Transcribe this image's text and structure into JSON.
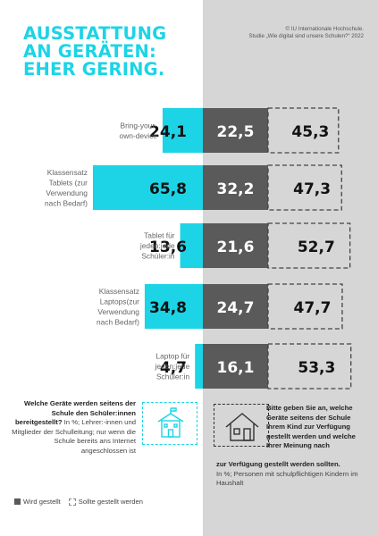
{
  "title": "AUSSTATTUNG\nAN GERÄTEN:\nEHER GERING.",
  "source": "© IU Internationale Hochschule.\nStudie „Wie digital sind unsere Schulen?“ 2022",
  "chart_data": {
    "type": "bar",
    "categories": [
      "Bring-your-own-device",
      "Klassensatz Tablets (zur Verwendung nach Bedarf)",
      "Tablet für jeden:jede Schüler:in",
      "Klassensatz Laptops(zur Verwendung nach Bedarf)",
      "Laptop für jeden:jede Schüler:in"
    ],
    "category_lines": [
      [
        "Bring-your-",
        "own-device"
      ],
      [
        "Klassensatz",
        "Tablets (zur",
        "Verwendung",
        "nach Bedarf)"
      ],
      [
        "Tablet für",
        "jeden:jede",
        "Schüler:in"
      ],
      [
        "Klassensatz",
        "Laptops(zur",
        "Verwendung",
        "nach Bedarf)"
      ],
      [
        "Laptop für",
        "jeden:jede",
        "Schüler:in"
      ]
    ],
    "series": [
      {
        "name": "",
        "values": [
          24.1,
          65.8,
          13.6,
          34.8,
          4.7
        ],
        "labels": [
          "24,1",
          "65,8",
          "13,6",
          "34,8",
          "4,7"
        ],
        "color": "#1cd4e6"
      },
      {
        "name": "Wird gestellt",
        "values": [
          22.5,
          32.2,
          21.6,
          24.7,
          16.1
        ],
        "labels": [
          "22,5",
          "32,2",
          "21,6",
          "24,7",
          "16,1"
        ],
        "color": "#5a5a5a"
      },
      {
        "name": "Sollte gestellt werden",
        "values": [
          45.3,
          47.3,
          52.7,
          47.7,
          53.3
        ],
        "labels": [
          "45,3",
          "47,3",
          "52,7",
          "47,7",
          "53,3"
        ],
        "color": "#555555"
      }
    ],
    "unit": "%"
  },
  "footer_left": {
    "bold": "Welche Geräte werden seitens der Schule den Schüler:innen bereitgestellt?",
    "text": " In %; Lehrer:-innen und Mitglieder der Schulleitung; nur wenn die Schule bereits ans Internet angeschlossen ist"
  },
  "footer_right": {
    "bold_top": "Bitte geben Sie an, welche Geräte seitens der Schule Ihrem Kind zur Verfügung gestellt werden und welche Ihrer Meinung nach",
    "bold_bottom": "zur Verfügung gestellt werden sollten.",
    "text": "In %; Personen mit schulpflichtigen Kindern im Haushalt"
  },
  "legend": {
    "filled": "Wird gestellt",
    "dashed": "Sollte gestellt werden"
  },
  "colors": {
    "accent": "#1cd4e6",
    "dark": "#5a5a5a",
    "panel": "#d6d6d6"
  },
  "icons": {
    "left": "school-building-icon",
    "right": "house-icon"
  }
}
